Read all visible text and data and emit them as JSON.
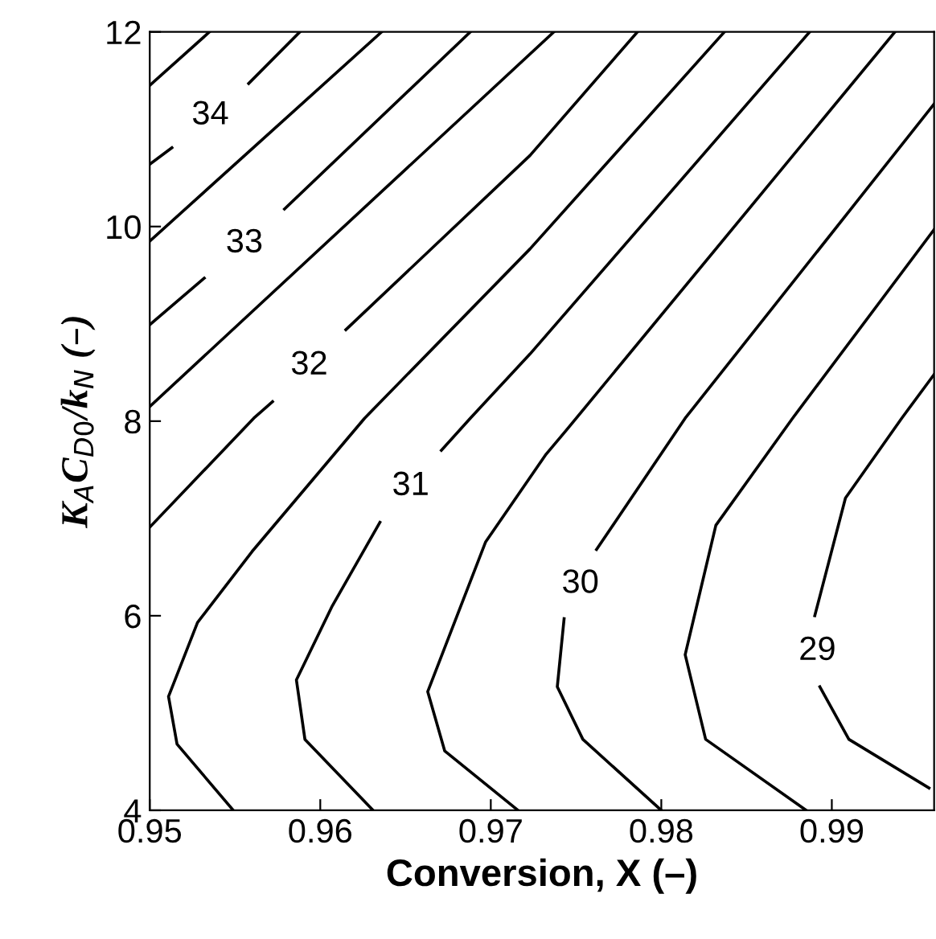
{
  "chart_data": {
    "type": "line",
    "xlabel": "Conversion, X (–)",
    "ylabel": "K$_{A}$C$_{D0}$/k$_{N}$ (–)",
    "xlim": [
      0.95,
      0.996
    ],
    "xticks": [
      0.95,
      0.96,
      0.97,
      0.98,
      0.99
    ],
    "ylim": [
      4,
      12
    ],
    "yticks": [
      4,
      6,
      8,
      10,
      12
    ],
    "grid": false,
    "legend": false,
    "marker": "none",
    "line_style": "solid",
    "series": [
      {
        "color": "#000000",
        "x": [
          0.95,
          0.9535
        ],
        "values": [
          11.45,
          12
        ]
      },
      {
        "name": "34",
        "color": "#000000",
        "x": [
          0.95,
          0.9513,
          0.9535,
          0.9558,
          0.9588
        ],
        "values": [
          10.64,
          10.81,
          null,
          11.47,
          12
        ]
      },
      {
        "color": "#000000",
        "x": [
          0.95,
          0.9636
        ],
        "values": [
          9.85,
          12
        ]
      },
      {
        "name": "33",
        "color": "#000000",
        "x": [
          0.95,
          0.9532,
          0.955,
          0.9579,
          0.9688
        ],
        "values": [
          8.99,
          9.47,
          null,
          10.18,
          12
        ]
      },
      {
        "color": "#000000",
        "x": [
          0.95,
          0.9737
        ],
        "values": [
          8.15,
          12
        ]
      },
      {
        "name": "32",
        "color": "#000000",
        "x": [
          0.95,
          0.9561,
          0.9572,
          0.959,
          0.9615,
          0.9723,
          0.9786
        ],
        "values": [
          6.91,
          8.03,
          8.2,
          null,
          8.94,
          10.73,
          12
        ]
      },
      {
        "color": "#000000",
        "x": [
          0.9549,
          0.9516,
          0.9511,
          0.9528,
          0.956,
          0.9626,
          0.9723,
          0.9837
        ],
        "values": [
          4,
          4.68,
          5.17,
          5.93,
          6.66,
          8.03,
          9.77,
          12
        ]
      },
      {
        "name": "31",
        "color": "#000000",
        "x": [
          0.9631,
          0.9591,
          0.9586,
          0.9607,
          0.9635,
          0.965,
          0.9671,
          0.9688,
          0.9723,
          0.9887
        ],
        "values": [
          4,
          4.73,
          5.34,
          6.1,
          6.96,
          null,
          7.7,
          8.03,
          8.69,
          12
        ]
      },
      {
        "color": "#000000",
        "x": [
          0.9716,
          0.9673,
          0.9663,
          0.9697,
          0.9732,
          0.9744,
          0.9937
        ],
        "values": [
          4,
          4.61,
          5.22,
          6.76,
          7.65,
          7.9,
          12
        ]
      },
      {
        "name": "30",
        "color": "#000000",
        "x": [
          0.98,
          0.9754,
          0.9739,
          0.9743,
          0.975,
          0.9762,
          0.9814,
          0.996
        ],
        "values": [
          4,
          4.73,
          5.27,
          5.97,
          null,
          6.68,
          8.03,
          11.26
        ]
      },
      {
        "color": "#000000",
        "x": [
          0.9885,
          0.9826,
          0.9814,
          0.9832,
          0.9877,
          0.996
        ],
        "values": [
          4,
          4.73,
          5.6,
          6.93,
          8.03,
          9.97
        ]
      },
      {
        "name": "29",
        "color": "#000000",
        "x": [
          0.9957,
          0.991,
          0.9893,
          0.9891,
          0.989,
          0.9908,
          0.9941,
          0.996
        ],
        "values": [
          4.23,
          4.73,
          5.27,
          null,
          6.0,
          7.21,
          8.03,
          8.48
        ]
      }
    ]
  }
}
